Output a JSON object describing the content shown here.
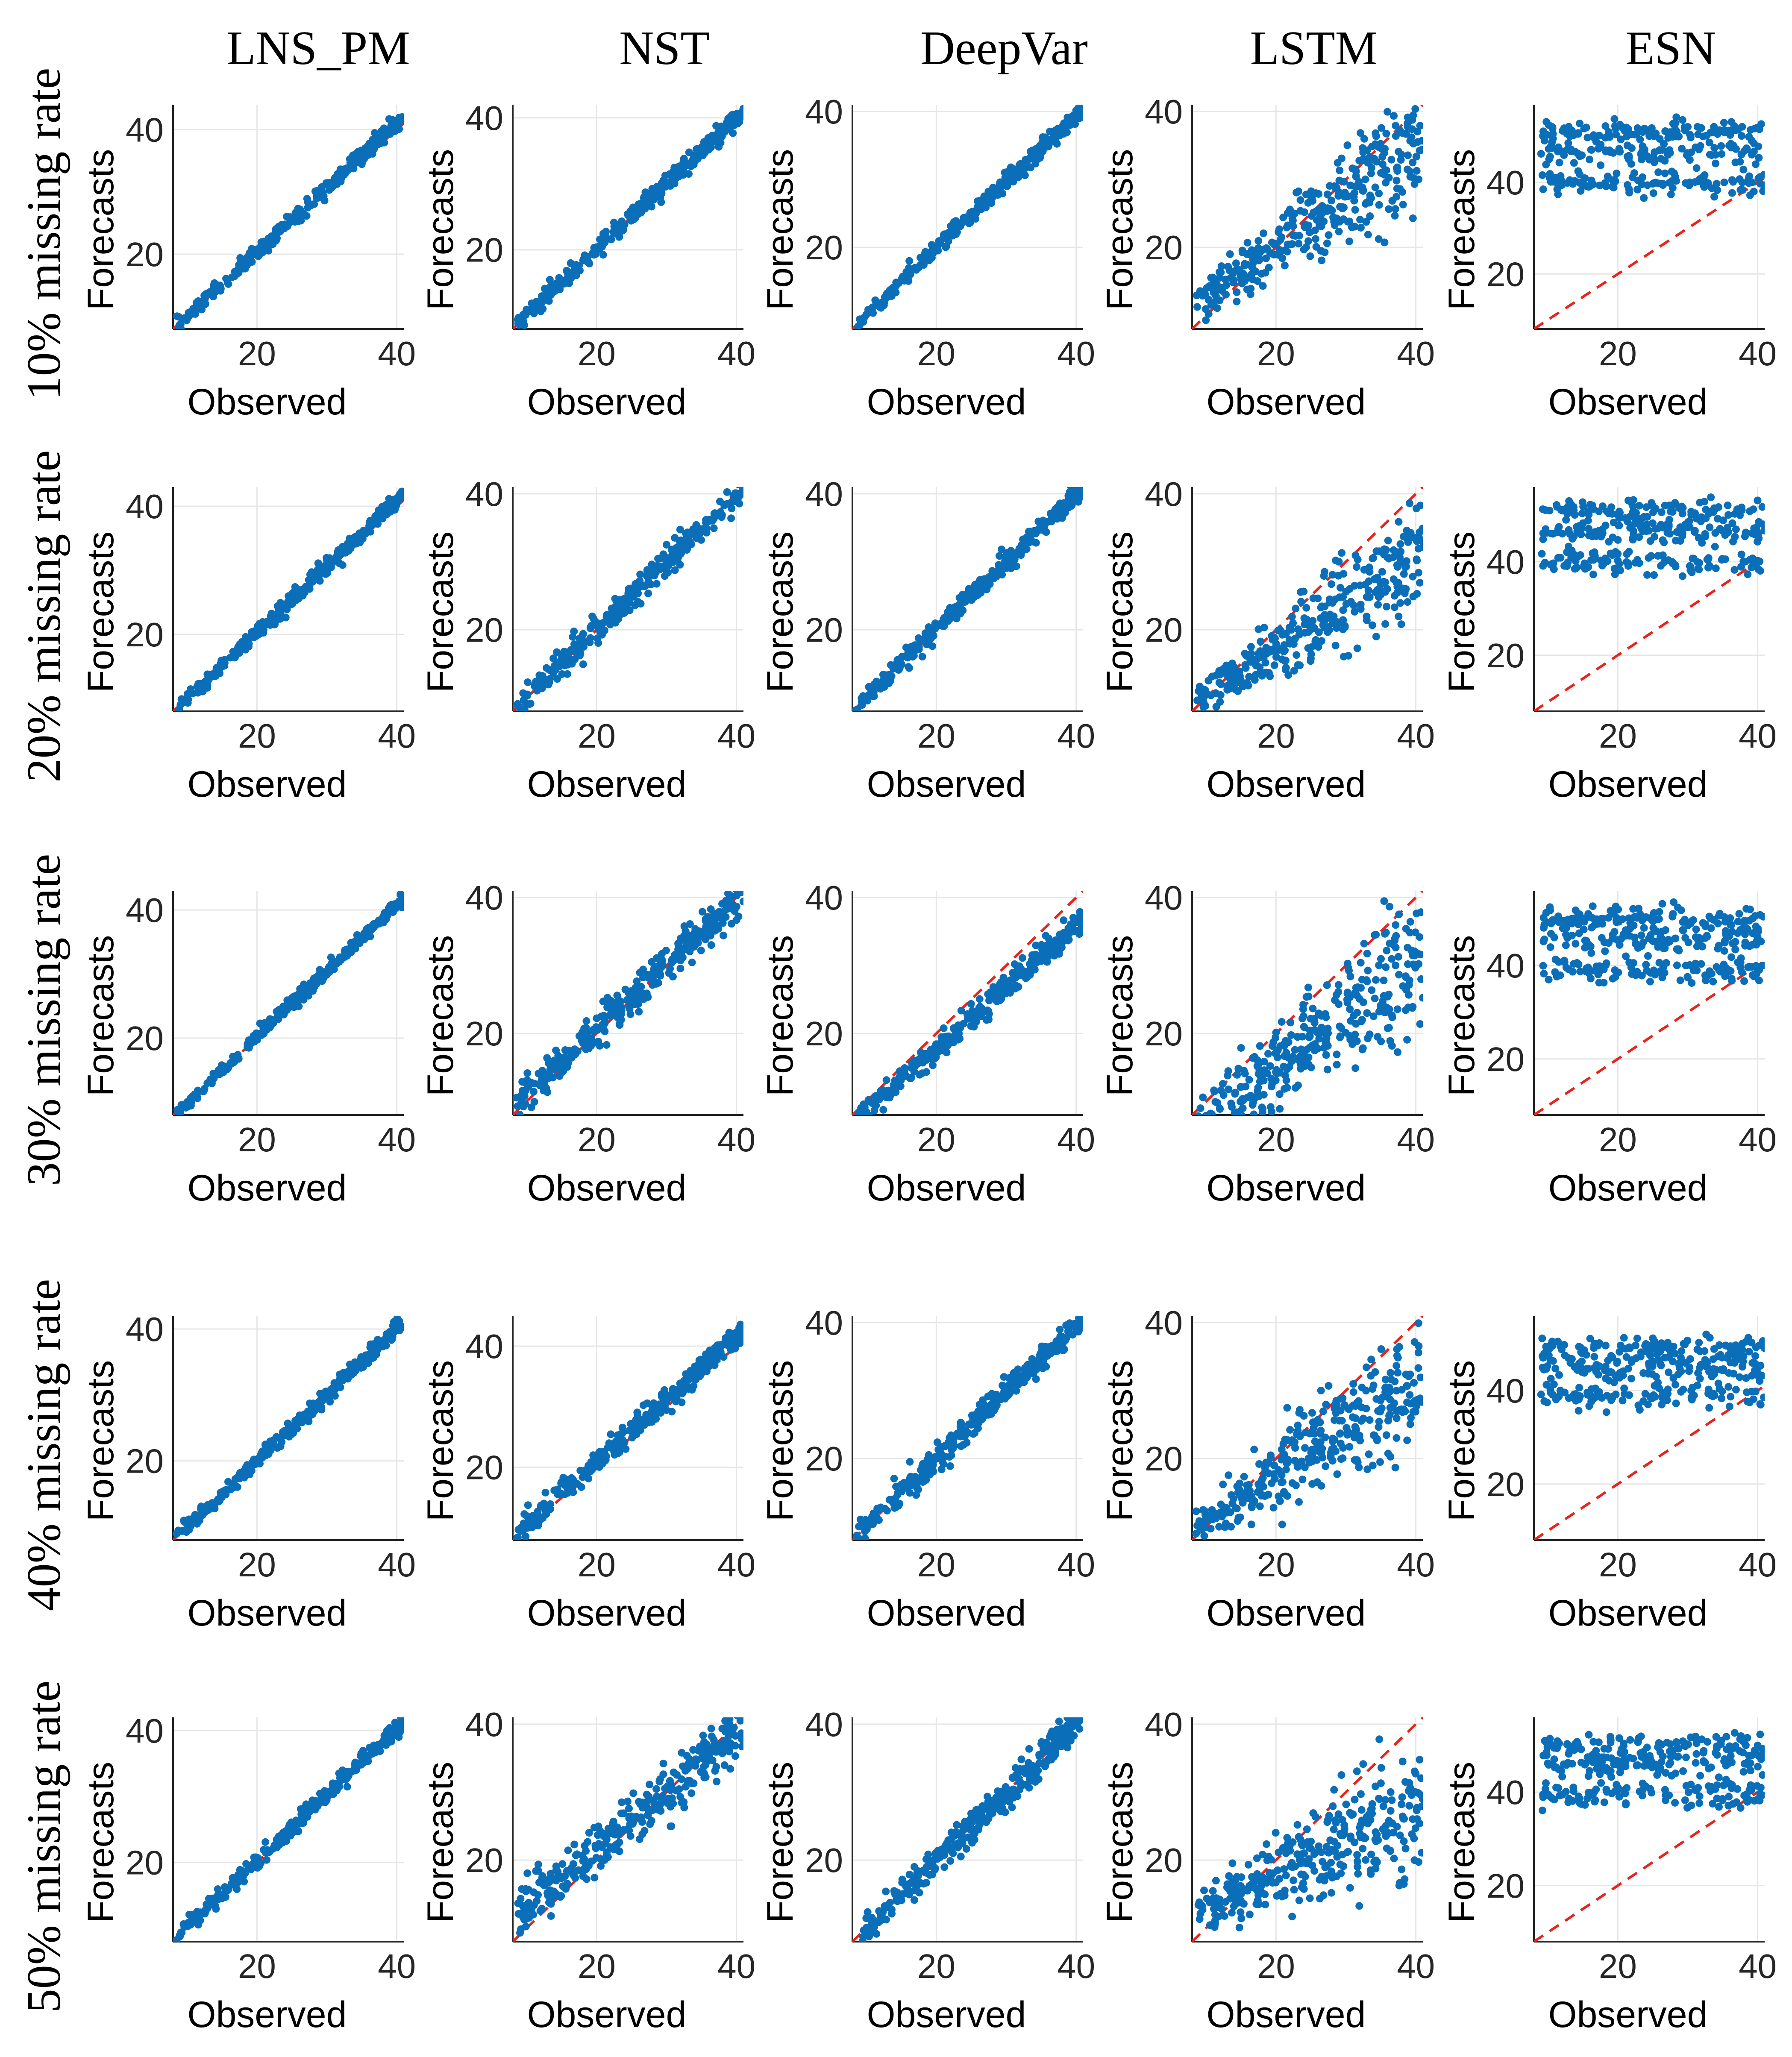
{
  "figure": {
    "columns": [
      "LNS_PM",
      "NST",
      "DeepVar",
      "LSTM",
      "ESN"
    ],
    "rows": [
      "10% missing rate",
      "20% missing rate",
      "30% missing rate",
      "40% missing rate",
      "50% missing rate"
    ],
    "x_label": "Observed",
    "y_label": "Forecasts",
    "colors": {
      "points": "#0a6eb8",
      "reference_line": "#e8241c",
      "grid": "#e6e6e6"
    }
  },
  "chart_data": {
    "type": "scatter",
    "description_units": "Each panel: observed (x) vs forecast (y); dashed red line is y = x",
    "reference_line": "y = x",
    "xlim": [
      8,
      41
    ],
    "x_ticks": [
      20,
      40
    ],
    "panels": [
      {
        "row": "10% missing rate",
        "model": "LNS_PM",
        "ylim": [
          8,
          44
        ],
        "y_ticks": [
          20,
          40
        ],
        "pattern": "near_diagonal",
        "slope": 1.04,
        "intercept": -0.5,
        "noise": 0.6
      },
      {
        "row": "10% missing rate",
        "model": "NST",
        "ylim": [
          8,
          42
        ],
        "y_ticks": [
          20,
          40
        ],
        "pattern": "near_diagonal",
        "slope": 1.0,
        "intercept": 0.0,
        "noise": 0.7
      },
      {
        "row": "10% missing rate",
        "model": "DeepVar",
        "ylim": [
          8,
          41
        ],
        "y_ticks": [
          20,
          40
        ],
        "pattern": "near_diagonal",
        "slope": 0.98,
        "intercept": 0.3,
        "noise": 0.6
      },
      {
        "row": "10% missing rate",
        "model": "LSTM",
        "ylim": [
          8,
          41
        ],
        "y_ticks": [
          20,
          40
        ],
        "pattern": "spread_low",
        "slope": 0.72,
        "intercept": 5.5,
        "noise": 3.2
      },
      {
        "row": "10% missing rate",
        "model": "ESN",
        "ylim": [
          8,
          57
        ],
        "y_ticks": [
          20,
          40
        ],
        "pattern": "flat_bands",
        "bands": [
          46.5,
          40,
          51
        ],
        "noise": 2.0
      },
      {
        "row": "20% missing rate",
        "model": "LNS_PM",
        "ylim": [
          8,
          43
        ],
        "y_ticks": [
          20,
          40
        ],
        "pattern": "near_diagonal",
        "slope": 1.03,
        "intercept": -0.4,
        "noise": 0.6
      },
      {
        "row": "20% missing rate",
        "model": "NST",
        "ylim": [
          8,
          41
        ],
        "y_ticks": [
          20,
          40
        ],
        "pattern": "near_diagonal",
        "slope": 0.98,
        "intercept": 0.6,
        "noise": 1.0
      },
      {
        "row": "20% missing rate",
        "model": "DeepVar",
        "ylim": [
          8,
          41
        ],
        "y_ticks": [
          20,
          40
        ],
        "pattern": "near_diagonal",
        "slope": 1.0,
        "intercept": 0.0,
        "noise": 0.7
      },
      {
        "row": "20% missing rate",
        "model": "LSTM",
        "ylim": [
          8,
          41
        ],
        "y_ticks": [
          20,
          40
        ],
        "pattern": "spread_low",
        "slope": 0.68,
        "intercept": 3.5,
        "noise": 3.0
      },
      {
        "row": "20% missing rate",
        "model": "ESN",
        "ylim": [
          8,
          56
        ],
        "y_ticks": [
          20,
          40
        ],
        "pattern": "flat_bands",
        "bands": [
          46.5,
          40,
          51
        ],
        "noise": 2.0
      },
      {
        "row": "30% missing rate",
        "model": "LNS_PM",
        "ylim": [
          8,
          43
        ],
        "y_ticks": [
          20,
          40
        ],
        "pattern": "near_diagonal",
        "slope": 1.03,
        "intercept": -0.4,
        "noise": 0.5
      },
      {
        "row": "30% missing rate",
        "model": "NST",
        "ylim": [
          8,
          41
        ],
        "y_ticks": [
          20,
          40
        ],
        "pattern": "near_diagonal",
        "slope": 0.95,
        "intercept": 1.5,
        "noise": 1.3
      },
      {
        "row": "30% missing rate",
        "model": "DeepVar",
        "ylim": [
          8,
          41
        ],
        "y_ticks": [
          20,
          40
        ],
        "pattern": "near_diagonal",
        "slope": 0.9,
        "intercept": -0.2,
        "noise": 0.9
      },
      {
        "row": "30% missing rate",
        "model": "LSTM",
        "ylim": [
          8,
          41
        ],
        "y_ticks": [
          20,
          40
        ],
        "pattern": "spread_low",
        "slope": 0.8,
        "intercept": -1.0,
        "noise": 4.0
      },
      {
        "row": "30% missing rate",
        "model": "ESN",
        "ylim": [
          8,
          56
        ],
        "y_ticks": [
          20,
          40
        ],
        "pattern": "flat_bands",
        "bands": [
          45.5,
          39,
          50
        ],
        "noise": 2.2
      },
      {
        "row": "40% missing rate",
        "model": "LNS_PM",
        "ylim": [
          8,
          42
        ],
        "y_ticks": [
          20,
          40
        ],
        "pattern": "near_diagonal",
        "slope": 1.0,
        "intercept": 0.0,
        "noise": 0.6
      },
      {
        "row": "40% missing rate",
        "model": "NST",
        "ylim": [
          8,
          45
        ],
        "y_ticks": [
          20,
          40
        ],
        "pattern": "near_diagonal",
        "slope": 1.03,
        "intercept": 0.3,
        "noise": 1.0
      },
      {
        "row": "40% missing rate",
        "model": "DeepVar",
        "ylim": [
          8,
          41
        ],
        "y_ticks": [
          20,
          40
        ],
        "pattern": "near_diagonal",
        "slope": 0.98,
        "intercept": 0.4,
        "noise": 0.9
      },
      {
        "row": "40% missing rate",
        "model": "LSTM",
        "ylim": [
          8,
          41
        ],
        "y_ticks": [
          20,
          40
        ],
        "pattern": "spread_low",
        "slope": 0.68,
        "intercept": 4.0,
        "noise": 3.4
      },
      {
        "row": "40% missing rate",
        "model": "ESN",
        "ylim": [
          8,
          56
        ],
        "y_ticks": [
          20,
          40
        ],
        "pattern": "flat_bands",
        "bands": [
          45,
          39,
          49
        ],
        "noise": 2.2
      },
      {
        "row": "50% missing rate",
        "model": "LNS_PM",
        "ylim": [
          8,
          42
        ],
        "y_ticks": [
          20,
          40
        ],
        "pattern": "near_diagonal",
        "slope": 1.01,
        "intercept": 0.0,
        "noise": 0.6
      },
      {
        "row": "50% missing rate",
        "model": "NST",
        "ylim": [
          8,
          41
        ],
        "y_ticks": [
          20,
          40
        ],
        "pattern": "near_diagonal",
        "slope": 0.85,
        "intercept": 4.5,
        "noise": 2.0
      },
      {
        "row": "50% missing rate",
        "model": "DeepVar",
        "ylim": [
          8,
          41
        ],
        "y_ticks": [
          20,
          40
        ],
        "pattern": "near_diagonal",
        "slope": 1.0,
        "intercept": 0.0,
        "noise": 1.2
      },
      {
        "row": "50% missing rate",
        "model": "LSTM",
        "ylim": [
          8,
          41
        ],
        "y_ticks": [
          20,
          40
        ],
        "pattern": "spread_low",
        "slope": 0.5,
        "intercept": 8.0,
        "noise": 3.5
      },
      {
        "row": "50% missing rate",
        "model": "ESN",
        "ylim": [
          8,
          56
        ],
        "y_ticks": [
          20,
          40
        ],
        "pattern": "flat_bands",
        "bands": [
          46,
          39.5,
          50
        ],
        "noise": 2.2
      }
    ]
  }
}
